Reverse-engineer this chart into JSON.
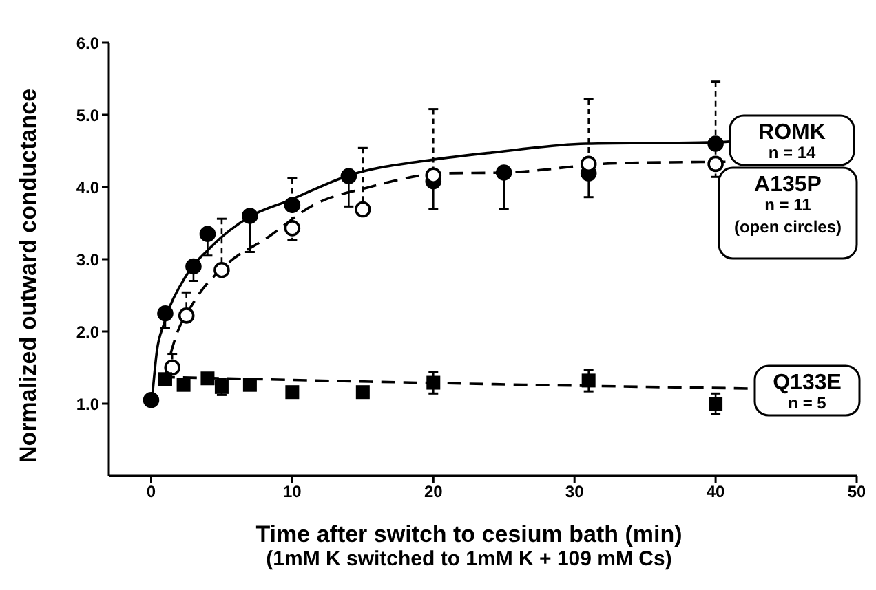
{
  "chart_data": {
    "type": "scatter",
    "xlabel": "Time after switch to cesium bath (min)\n(1mM K switched to 1mM K + 109 mM Cs)",
    "ylabel": "Normalized outward conductance",
    "xlim": [
      -3,
      50
    ],
    "xticks": [
      0,
      10,
      20,
      30,
      40,
      50
    ],
    "ylim": [
      0,
      6
    ],
    "yticks": [
      {
        "value": 1,
        "label": "1.0"
      },
      {
        "value": 2,
        "label": "2.0"
      },
      {
        "value": 3,
        "label": "3.0"
      },
      {
        "value": 4,
        "label": "4.0"
      },
      {
        "value": 5,
        "label": "5.0"
      },
      {
        "value": 6,
        "label": "6.0"
      }
    ],
    "grid": false,
    "legend": false,
    "annotations": [
      "n = 14",
      "n = 11",
      "(open circles)",
      "n = 5"
    ],
    "series": [
      {
        "name": "ROMK",
        "color": "#000000",
        "marker": "circle",
        "x": [
          0,
          1,
          3,
          4,
          7,
          10,
          14,
          20,
          25,
          31,
          40
        ],
        "values": [
          1.05,
          2.25,
          2.9,
          3.35,
          3.6,
          3.75,
          4.15,
          4.08,
          4.2,
          4.19,
          4.6
        ],
        "errors": [
          null,
          [
            2.05,
            2.25
          ],
          [
            2.7,
            2.9
          ],
          [
            3.05,
            3.35
          ],
          [
            3.1,
            3.6
          ],
          [
            3.75,
            3.75
          ],
          [
            3.73,
            4.15
          ],
          [
            3.7,
            4.08
          ],
          [
            3.7,
            4.2
          ],
          [
            3.86,
            4.19
          ],
          [
            4.6,
            4.6
          ]
        ]
      },
      {
        "name": "A135P",
        "color": "#ffffff",
        "marker": "circle",
        "line_style": "dashed",
        "x": [
          1.5,
          2.5,
          5,
          10,
          15,
          20,
          31,
          40
        ],
        "values": [
          1.5,
          2.22,
          2.85,
          3.43,
          3.69,
          4.16,
          4.32,
          4.32
        ],
        "errors": [
          [
            1.5,
            1.69
          ],
          [
            2.22,
            2.54
          ],
          [
            2.85,
            3.56
          ],
          [
            3.27,
            4.12
          ],
          [
            3.69,
            4.54
          ],
          [
            4.16,
            5.08
          ],
          [
            4.32,
            5.22
          ],
          [
            4.14,
            5.46
          ]
        ]
      },
      {
        "name": "Q133E",
        "color": "#000000",
        "marker": "square",
        "x": [
          1,
          2.3,
          4,
          5,
          7,
          10,
          15,
          20,
          31,
          40
        ],
        "values": [
          1.34,
          1.26,
          1.35,
          1.23,
          1.26,
          1.16,
          1.16,
          1.29,
          1.32,
          1.0
        ],
        "errors": [
          null,
          null,
          null,
          0.11,
          null,
          null,
          null,
          0.15,
          0.15,
          0.14
        ]
      },
      {
        "type": "line",
        "color": "#000000",
        "line_style": "solid",
        "marker": "none",
        "x": [
          0.1,
          0.4,
          0.9,
          2.35,
          4.3,
          7,
          9.85,
          14,
          20,
          24.3,
          30.8,
          40,
          41
        ],
        "values": [
          1.14,
          1.72,
          2.1,
          2.73,
          3.18,
          3.59,
          3.82,
          4.16,
          4.38,
          4.48,
          4.6,
          4.62,
          4.63
        ]
      },
      {
        "type": "line",
        "color": "#000000",
        "line_style": "dashed",
        "marker": "none",
        "x": [
          1,
          1.7,
          3,
          5.3,
          8.25,
          11.5,
          15.5,
          20.7,
          25,
          33,
          40.7
        ],
        "values": [
          1.4,
          1.9,
          2.4,
          2.92,
          3.3,
          3.75,
          4.0,
          4.19,
          4.2,
          4.33,
          4.35
        ]
      },
      {
        "type": "line",
        "color": "#000000",
        "line_style": "dashed",
        "marker": "none",
        "x": [
          0.7,
          24.3,
          42.3
        ],
        "values": [
          1.37,
          1.27,
          1.21
        ]
      }
    ]
  }
}
